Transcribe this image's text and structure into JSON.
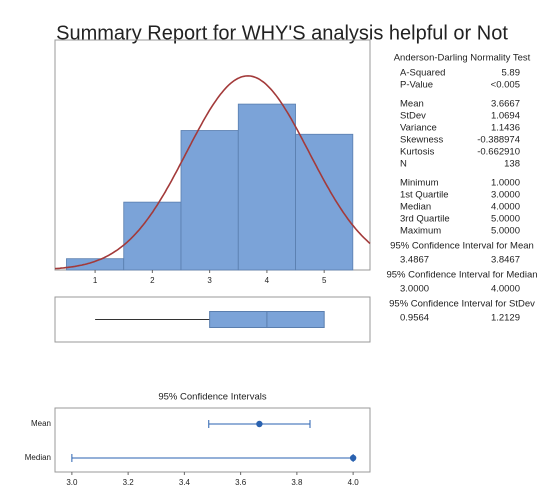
{
  "title": "Summary Report for WHY'S analysis helpful or Not",
  "chart_data": [
    {
      "type": "histogram",
      "bins": [
        0.5,
        1.5,
        2.5,
        3.5,
        4.5,
        5.5
      ],
      "values": [
        3,
        18,
        37,
        44,
        36
      ],
      "xlim": [
        0.3,
        5.8
      ],
      "ylim": [
        0,
        61
      ],
      "xticks": [
        1,
        2,
        3,
        4,
        5
      ],
      "color": "#7ba3d8",
      "curve_color": "#a33a3a"
    },
    {
      "type": "interval",
      "title": "95% Confidence Intervals",
      "categories": [
        "Mean",
        "Median"
      ],
      "xlim": [
        2.94,
        4.06
      ],
      "xticks": [
        {
          "value": 3,
          "label": "3.0"
        },
        3.2,
        3.4,
        3.6,
        3.8,
        {
          "value": 4,
          "label": "4.0"
        }
      ],
      "color": "#2a62b0"
    }
  ],
  "stats": {
    "heading": "Anderson-Darling Normality Test",
    "groups": [
      [
        [
          "A-Squared",
          "5.89"
        ],
        [
          "P-Value",
          "<0.005"
        ]
      ],
      [
        [
          "Mean",
          "3.6667"
        ],
        [
          "StDev",
          "1.0694"
        ],
        [
          "Variance",
          "1.1436"
        ],
        [
          "Skewness",
          "-0.388974"
        ],
        [
          "Kurtosis",
          "-0.662910"
        ],
        [
          "N",
          "138"
        ]
      ],
      [
        [
          "Minimum",
          "1.0000"
        ],
        [
          "1st Quartile",
          "3.0000"
        ],
        [
          "Median",
          "4.0000"
        ],
        [
          "3rd Quartile",
          "5.0000"
        ],
        [
          "Maximum",
          "5.0000"
        ]
      ]
    ],
    "intervals": [
      {
        "heading": "95% Confidence Interval for Mean",
        "low": "3.4867",
        "high": "3.8467"
      },
      {
        "heading": "95% Confidence Interval for Median",
        "low": "3.0000",
        "high": "4.0000"
      },
      {
        "heading": "95% Confidence Interval for StDev",
        "low": "0.9564",
        "high": "1.2129"
      }
    ]
  }
}
